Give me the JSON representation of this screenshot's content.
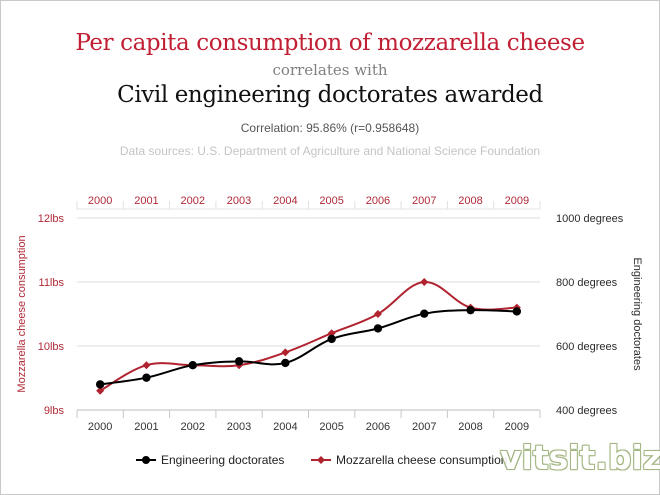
{
  "header": {
    "title_primary": "Per capita consumption of mozzarella cheese",
    "connector": "correlates with",
    "title_secondary": "Civil engineering doctorates awarded",
    "correlation": "Correlation: 95.86% (r=0.958648)",
    "sources": "Data sources: U.S. Department of Agriculture and National Science Foundation"
  },
  "watermark": "vitsit.biz",
  "chart_data": {
    "type": "line",
    "x": [
      "2000",
      "2001",
      "2002",
      "2003",
      "2004",
      "2005",
      "2006",
      "2007",
      "2008",
      "2009"
    ],
    "y_left": {
      "label": "Mozzarella cheese consumption",
      "ticks": [
        "12lbs",
        "11lbs",
        "10lbs",
        "9lbs"
      ],
      "range": [
        9,
        12
      ],
      "color": "#b02a37"
    },
    "y_right": {
      "label": "Engineering doctorates",
      "ticks": [
        "1000 degrees",
        "800 degrees",
        "600 degrees",
        "400 degrees"
      ],
      "range": [
        400,
        1000
      ],
      "color": "#2b2b2b"
    },
    "series": [
      {
        "name": "Engineering doctorates",
        "axis": "right",
        "color": "#000000",
        "marker": "circle",
        "values": [
          480,
          501,
          540,
          552,
          547,
          622,
          655,
          701,
          712,
          708
        ]
      },
      {
        "name": "Mozzarella cheese consumption",
        "axis": "left",
        "color": "#b0232f",
        "marker": "diamond",
        "values": [
          9.3,
          9.7,
          9.7,
          9.7,
          9.9,
          10.2,
          10.5,
          11.0,
          10.6,
          10.6
        ]
      }
    ],
    "grid": true,
    "legend_position": "bottom-center"
  }
}
